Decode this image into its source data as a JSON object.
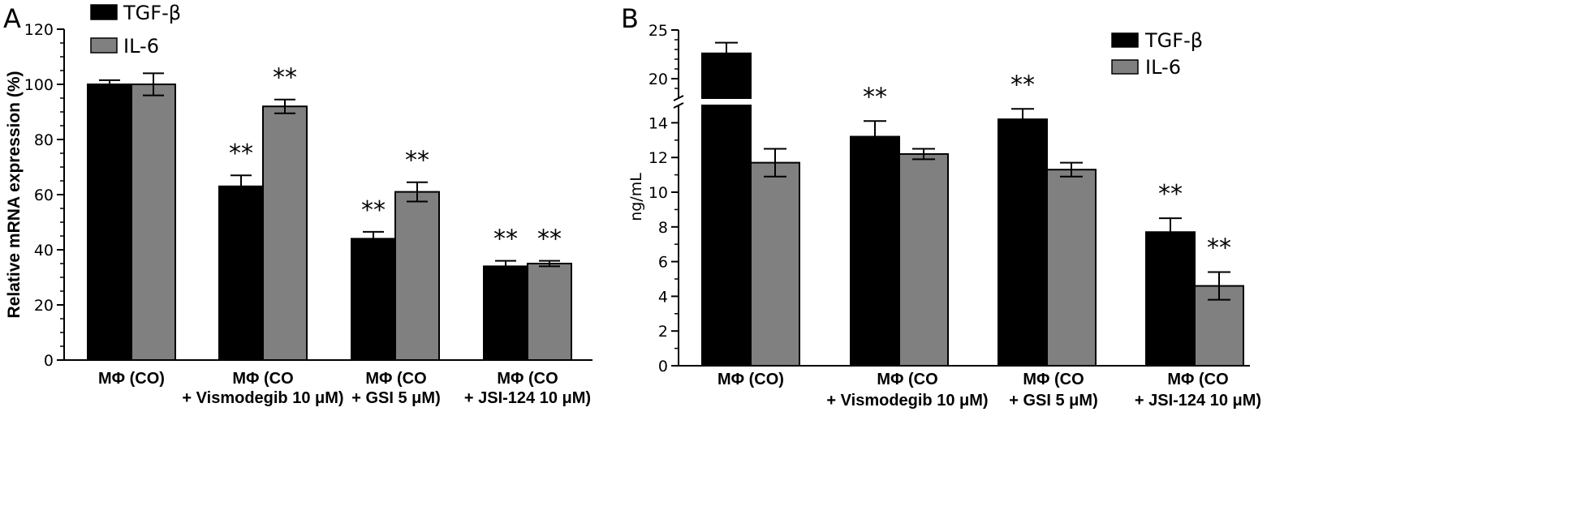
{
  "chart_data": [
    {
      "type": "bar",
      "panel_label": "A",
      "ylabel": "Relative mRNA expression (%)",
      "ylim": [
        0,
        120
      ],
      "y_ticks": [
        0,
        20,
        40,
        60,
        80,
        100,
        120
      ],
      "categories": [
        [
          "MΦ (CO)"
        ],
        [
          "MΦ (CO",
          "+ Vismodegib 10 μM)"
        ],
        [
          "MΦ (CO",
          "+ GSI 5 μM)"
        ],
        [
          "MΦ (CO",
          "+ JSI-124 10 μM)"
        ]
      ],
      "legend_position": "top-left",
      "series": [
        {
          "name": "TGF-β",
          "color": "#000000",
          "values": [
            100,
            63,
            44,
            34
          ],
          "errors": [
            1.5,
            4,
            2.5,
            2
          ],
          "annotations": [
            "",
            "**",
            "**",
            "**"
          ]
        },
        {
          "name": "IL-6",
          "color": "#808080",
          "values": [
            100,
            92,
            61,
            35
          ],
          "errors": [
            4,
            2.5,
            3.5,
            1
          ],
          "annotations": [
            "",
            "**",
            "**",
            "**"
          ]
        }
      ]
    },
    {
      "type": "bar",
      "panel_label": "B",
      "ylabel": "ng/mL",
      "ylim": [
        0,
        25
      ],
      "y_axis_break": [
        15,
        18
      ],
      "y_ticks": [
        0,
        2,
        4,
        6,
        8,
        10,
        12,
        14,
        20,
        25
      ],
      "categories": [
        [
          "MΦ (CO)"
        ],
        [
          "MΦ (CO",
          "+ Vismodegib 10 μM)"
        ],
        [
          "MΦ (CO",
          "+ GSI 5 μM)"
        ],
        [
          "MΦ (CO",
          "+ JSI-124 10 μM)"
        ]
      ],
      "legend_position": "top-right",
      "series": [
        {
          "name": "TGF-β",
          "color": "#000000",
          "values": [
            22.6,
            13.2,
            14.2,
            7.7
          ],
          "errors": [
            1.1,
            0.9,
            0.6,
            0.8
          ],
          "annotations": [
            "",
            "**",
            "**",
            "**"
          ]
        },
        {
          "name": "IL-6",
          "color": "#808080",
          "values": [
            11.7,
            12.2,
            11.3,
            4.6
          ],
          "errors": [
            0.8,
            0.3,
            0.4,
            0.8
          ],
          "annotations": [
            "",
            "",
            "",
            "**"
          ]
        }
      ]
    }
  ]
}
